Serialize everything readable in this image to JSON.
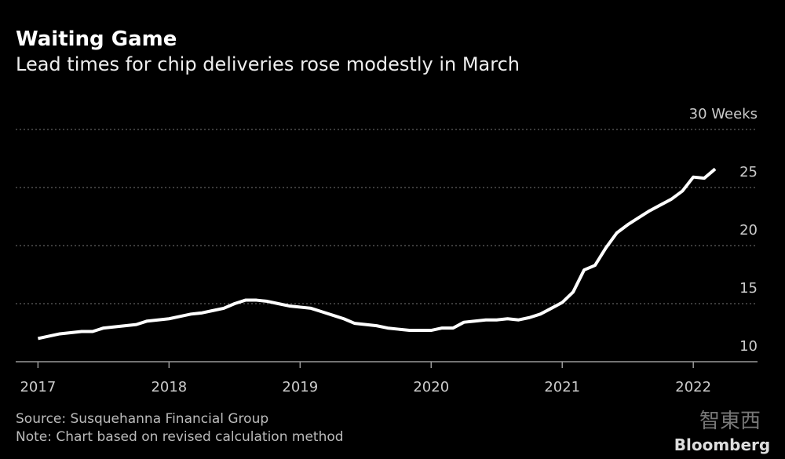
{
  "chart_data": {
    "type": "line",
    "title": "Waiting Game",
    "subtitle": "Lead times for chip deliveries rose modestly in March",
    "source": "Source: Susquehanna Financial Group",
    "note": "Note: Chart based on revised calculation method",
    "brand": "Bloomberg",
    "watermark": "智東西",
    "x": [
      2017.0,
      2017.083,
      2017.167,
      2017.25,
      2017.333,
      2017.417,
      2017.5,
      2017.583,
      2017.667,
      2017.75,
      2017.833,
      2017.917,
      2018.0,
      2018.083,
      2018.167,
      2018.25,
      2018.333,
      2018.417,
      2018.5,
      2018.583,
      2018.667,
      2018.75,
      2018.833,
      2018.917,
      2019.0,
      2019.083,
      2019.167,
      2019.25,
      2019.333,
      2019.417,
      2019.5,
      2019.583,
      2019.667,
      2019.75,
      2019.833,
      2019.917,
      2020.0,
      2020.083,
      2020.167,
      2020.25,
      2020.333,
      2020.417,
      2020.5,
      2020.583,
      2020.667,
      2020.75,
      2020.833,
      2020.917,
      2021.0,
      2021.083,
      2021.167,
      2021.25,
      2021.333,
      2021.417,
      2021.5,
      2021.583,
      2021.667,
      2021.75,
      2021.833,
      2021.917,
      2022.0,
      2022.083,
      2022.167
    ],
    "series": [
      {
        "name": "Lead time",
        "color": "#ffffff",
        "values": [
          12.0,
          12.2,
          12.4,
          12.5,
          12.6,
          12.6,
          12.9,
          13.0,
          13.1,
          13.2,
          13.5,
          13.6,
          13.7,
          13.9,
          14.1,
          14.2,
          14.4,
          14.6,
          15.0,
          15.3,
          15.3,
          15.2,
          15.0,
          14.8,
          14.7,
          14.6,
          14.3,
          14.0,
          13.7,
          13.3,
          13.2,
          13.1,
          12.9,
          12.8,
          12.7,
          12.7,
          12.7,
          12.9,
          12.9,
          13.4,
          13.5,
          13.6,
          13.6,
          13.7,
          13.6,
          13.8,
          14.1,
          14.6,
          15.1,
          16.0,
          17.9,
          18.3,
          19.8,
          21.1,
          21.8,
          22.4,
          23.0,
          23.5,
          24.0,
          24.7,
          25.9,
          25.8,
          26.6
        ]
      }
    ],
    "xlim": [
      2016.83,
      2022.49
    ],
    "xticks": [
      2017,
      2018,
      2019,
      2020,
      2021,
      2022
    ],
    "ylim": [
      10,
      30
    ],
    "yticks": [
      10,
      15,
      20,
      25,
      {
        "value": 30,
        "label": "30 Weeks"
      }
    ],
    "grid": true
  }
}
